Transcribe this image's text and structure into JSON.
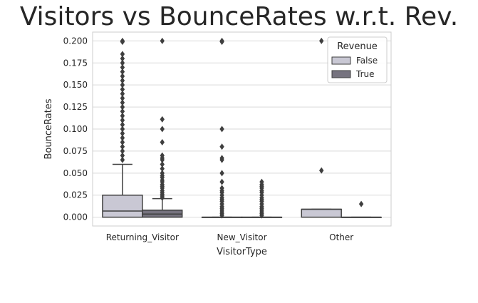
{
  "chart_data": {
    "type": "box",
    "title": "Visitors vs BounceRates w.r.t. Rev.",
    "xlabel": "VisitorType",
    "ylabel": "BounceRates",
    "ylim": [
      -0.01,
      0.21
    ],
    "yticks": [
      "0.000",
      "0.025",
      "0.050",
      "0.075",
      "0.100",
      "0.125",
      "0.150",
      "0.175",
      "0.200"
    ],
    "grid": "horizontal",
    "legend": {
      "title": "Revenue",
      "placement": "top-right",
      "entries": [
        "False",
        "True"
      ]
    },
    "categories": [
      "Returning_Visitor",
      "New_Visitor",
      "Other"
    ],
    "series": [
      {
        "name": "False",
        "color": "#c9c8d4",
        "boxes": [
          {
            "category": "Returning_Visitor",
            "q1": 0.0,
            "median": 0.007,
            "q3": 0.025,
            "whisker_low": 0.0,
            "whisker_high": 0.06,
            "outliers": [
              0.2,
              0.199,
              0.185,
              0.18,
              0.175,
              0.17,
              0.165,
              0.16,
              0.155,
              0.15,
              0.145,
              0.14,
              0.135,
              0.13,
              0.125,
              0.12,
              0.115,
              0.11,
              0.105,
              0.1,
              0.095,
              0.09,
              0.085,
              0.08,
              0.075,
              0.07,
              0.065
            ]
          },
          {
            "category": "New_Visitor",
            "q1": 0.0,
            "median": 0.0,
            "q3": 0.0,
            "whisker_low": 0.0,
            "whisker_high": 0.0,
            "outliers": [
              0.2,
              0.199,
              0.1,
              0.08,
              0.067,
              0.065,
              0.05,
              0.04,
              0.033,
              0.03,
              0.028,
              0.025,
              0.022,
              0.02,
              0.018,
              0.015,
              0.012,
              0.01,
              0.008,
              0.006,
              0.004,
              0.002
            ]
          },
          {
            "category": "Other",
            "q1": 0.0,
            "median": 0.009,
            "q3": 0.009,
            "whisker_low": 0.0,
            "whisker_high": 0.009,
            "outliers": [
              0.2,
              0.053
            ]
          }
        ]
      },
      {
        "name": "True",
        "color": "#76737f",
        "boxes": [
          {
            "category": "Returning_Visitor",
            "q1": 0.0,
            "median": 0.0035,
            "q3": 0.008,
            "whisker_low": 0.0,
            "whisker_high": 0.021,
            "outliers": [
              0.2,
              0.111,
              0.1,
              0.085,
              0.07,
              0.067,
              0.065,
              0.06,
              0.055,
              0.05,
              0.047,
              0.045,
              0.042,
              0.04,
              0.037,
              0.035,
              0.033,
              0.03,
              0.028,
              0.026,
              0.024,
              0.022
            ]
          },
          {
            "category": "New_Visitor",
            "q1": 0.0,
            "median": 0.0,
            "q3": 0.0,
            "whisker_low": 0.0,
            "whisker_high": 0.0,
            "outliers": [
              0.04,
              0.037,
              0.035,
              0.033,
              0.03,
              0.028,
              0.025,
              0.022,
              0.02,
              0.018,
              0.015,
              0.012,
              0.01,
              0.008,
              0.006,
              0.004,
              0.002
            ]
          },
          {
            "category": "Other",
            "q1": 0.0,
            "median": 0.0,
            "q3": 0.0,
            "whisker_low": 0.0,
            "whisker_high": 0.0,
            "outliers": [
              0.015
            ]
          }
        ]
      }
    ]
  }
}
